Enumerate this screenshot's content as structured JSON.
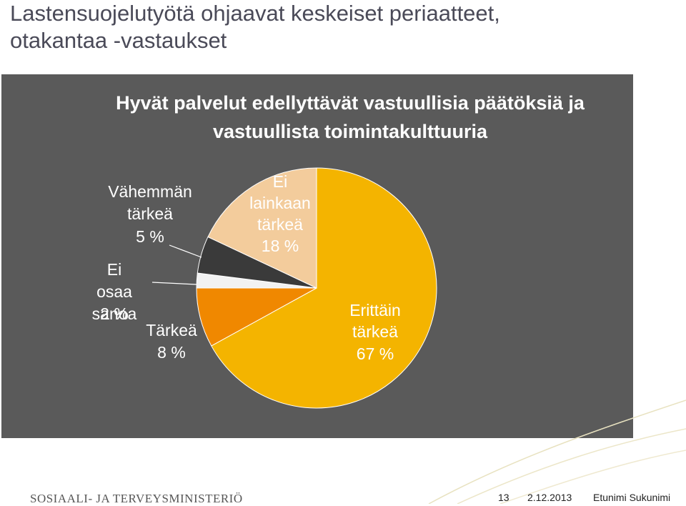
{
  "header": {
    "title": "Lastensuojelutyötä ohjaavat keskeiset periaatteet, otakantaa -vastaukset"
  },
  "chart_data": {
    "type": "pie",
    "title": "Hyvät palvelut edellyttävät vastuullisia päätöksiä ja vastuullista toimintakulttuuria",
    "categories": [
      "Erittäin tärkeä",
      "Tärkeä",
      "Ei osaa sanoa",
      "Vähemmän tärkeä",
      "Ei lainkaan tärkeä"
    ],
    "values": [
      67,
      8,
      2,
      5,
      18
    ],
    "value_labels": [
      "67 %",
      "8 %",
      "2 %",
      "5 %",
      "18 %"
    ],
    "colors": [
      "#f4b400",
      "#f08800",
      "#f2f2f2",
      "#3a3a3a",
      "#f3cc9c"
    ]
  },
  "footer": {
    "organization": "SOSIAALI- JA TERVEYSMINISTERIÖ",
    "page": "13",
    "date": "2.12.2013",
    "author": "Etunimi Sukunimi"
  }
}
